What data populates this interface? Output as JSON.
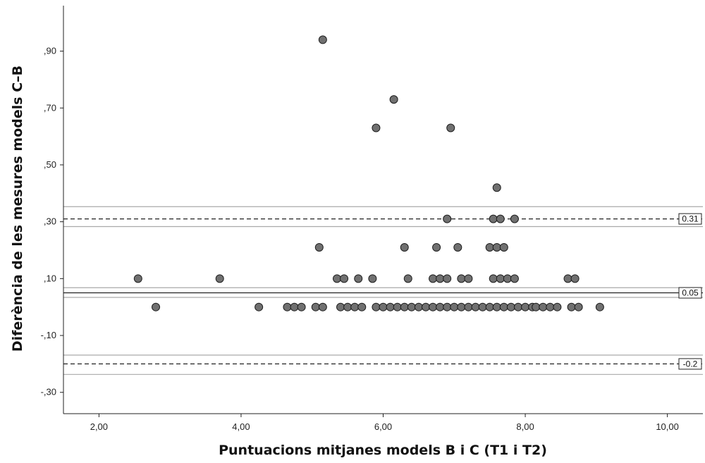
{
  "chart_data": {
    "type": "scatter",
    "xlabel": "Puntuacions mitjanes models B i C (T1 i T2)",
    "ylabel": "Diferència de les mesures models C–B",
    "xlim": [
      1.5,
      10.5
    ],
    "ylim": [
      -0.375,
      1.06
    ],
    "x_ticks": [
      2.0,
      4.0,
      6.0,
      8.0,
      10.0
    ],
    "x_tick_labels": [
      "2,00",
      "4,00",
      "6,00",
      "8,00",
      "10,00"
    ],
    "y_ticks": [
      -0.3,
      -0.1,
      0.1,
      0.3,
      0.5,
      0.7,
      0.9
    ],
    "y_tick_labels": [
      "-,30",
      "-,10",
      ",10",
      ",30",
      ",50",
      ",70",
      ",90"
    ],
    "grid": false,
    "reference_lines": [
      {
        "y": 0.31,
        "label": "0.31",
        "style": "dashed",
        "ci": [
          0.283,
          0.353
        ]
      },
      {
        "y": 0.05,
        "label": "0.05",
        "style": "solid",
        "ci": [
          0.034,
          0.068
        ]
      },
      {
        "y": -0.2,
        "label": "-0.2",
        "style": "dashed",
        "ci": [
          -0.237,
          -0.169
        ]
      }
    ],
    "points": [
      [
        2.55,
        0.1
      ],
      [
        2.8,
        0
      ],
      [
        3.7,
        0.1
      ],
      [
        4.25,
        0
      ],
      [
        4.65,
        0
      ],
      [
        4.75,
        0
      ],
      [
        4.85,
        0
      ],
      [
        5.05,
        0
      ],
      [
        5.15,
        0
      ],
      [
        5.1,
        0.21
      ],
      [
        5.15,
        0.94
      ],
      [
        5.35,
        0.1
      ],
      [
        5.45,
        0.1
      ],
      [
        5.4,
        0
      ],
      [
        5.5,
        0
      ],
      [
        5.6,
        0
      ],
      [
        5.7,
        0
      ],
      [
        5.65,
        0.1
      ],
      [
        5.85,
        0.1
      ],
      [
        5.9,
        0.63
      ],
      [
        5.9,
        0
      ],
      [
        6.0,
        0
      ],
      [
        6.1,
        0
      ],
      [
        6.15,
        0.73
      ],
      [
        6.2,
        0
      ],
      [
        6.3,
        0
      ],
      [
        6.3,
        0.21
      ],
      [
        6.35,
        0.1
      ],
      [
        6.4,
        0
      ],
      [
        6.5,
        0
      ],
      [
        6.6,
        0
      ],
      [
        6.7,
        0
      ],
      [
        6.7,
        0.1
      ],
      [
        6.75,
        0.21
      ],
      [
        6.8,
        0
      ],
      [
        6.8,
        0.1
      ],
      [
        6.9,
        0
      ],
      [
        6.9,
        0.1
      ],
      [
        6.9,
        0.31
      ],
      [
        6.95,
        0.63
      ],
      [
        7.0,
        0
      ],
      [
        7.05,
        0.21
      ],
      [
        7.1,
        0
      ],
      [
        7.1,
        0.1
      ],
      [
        7.2,
        0
      ],
      [
        7.2,
        0.1
      ],
      [
        7.3,
        0
      ],
      [
        7.4,
        0
      ],
      [
        7.5,
        0
      ],
      [
        7.5,
        0.21
      ],
      [
        7.55,
        0.1
      ],
      [
        7.55,
        0.31
      ],
      [
        7.6,
        0
      ],
      [
        7.6,
        0.21
      ],
      [
        7.6,
        0.42
      ],
      [
        7.65,
        0.1
      ],
      [
        7.65,
        0.31
      ],
      [
        7.7,
        0
      ],
      [
        7.7,
        0.21
      ],
      [
        7.75,
        0.1
      ],
      [
        7.8,
        0
      ],
      [
        7.85,
        0.1
      ],
      [
        7.85,
        0.31
      ],
      [
        7.9,
        0
      ],
      [
        8.0,
        0
      ],
      [
        8.1,
        0
      ],
      [
        8.15,
        0
      ],
      [
        8.25,
        0
      ],
      [
        8.35,
        0
      ],
      [
        8.45,
        0
      ],
      [
        8.6,
        0.1
      ],
      [
        8.65,
        0
      ],
      [
        8.7,
        0.1
      ],
      [
        8.75,
        0
      ],
      [
        9.05,
        0
      ]
    ]
  }
}
